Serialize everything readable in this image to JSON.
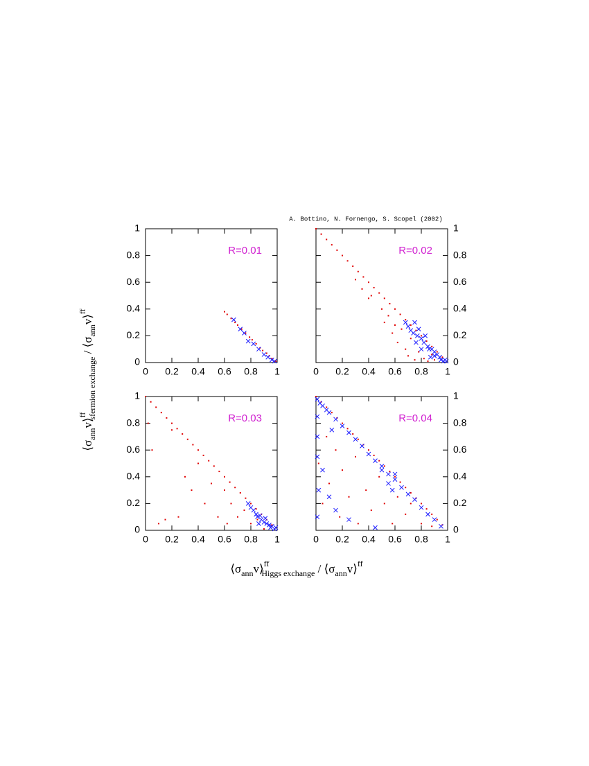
{
  "figure": {
    "credit": "A. Bottino, N. Fornengo, S. Scopel (2002)",
    "x_label": [
      "⟨σ",
      "ann",
      "v⟩",
      "ff",
      "Higgs exchange",
      " / ⟨σ",
      "ann",
      "v⟩",
      "ff"
    ],
    "y_label": [
      "⟨σ",
      "ann",
      "v⟩",
      "ff",
      "sfermion exchange",
      " / ⟨σ",
      "ann",
      "v⟩",
      "ff"
    ]
  },
  "chart_data": [
    {
      "type": "scatter",
      "annotation": "R=0.01",
      "annotation_color": "#d020d0",
      "ytick_side": "left",
      "xlim": [
        0,
        1
      ],
      "ylim": [
        0,
        1
      ],
      "xticks": [
        0,
        0.2,
        0.4,
        0.6,
        0.8,
        1
      ],
      "yticks": [
        0,
        0.2,
        0.4,
        0.6,
        0.8,
        1
      ],
      "series": [
        {
          "color": "#e00000",
          "marker": "dot",
          "x": [
            0.6,
            0.62,
            0.65,
            0.68,
            0.7,
            0.73,
            0.76,
            0.79,
            0.81,
            0.84,
            0.87,
            0.89,
            0.92,
            0.94,
            0.96,
            0.98,
            0.99
          ],
          "values": [
            0.38,
            0.36,
            0.33,
            0.3,
            0.28,
            0.25,
            0.22,
            0.19,
            0.17,
            0.14,
            0.11,
            0.09,
            0.07,
            0.05,
            0.03,
            0.01,
            0.01
          ]
        },
        {
          "color": "#1a1aff",
          "marker": "cross",
          "x": [
            0.67,
            0.72,
            0.75,
            0.78,
            0.82,
            0.86,
            0.9,
            0.93,
            0.96,
            0.98
          ],
          "values": [
            0.32,
            0.25,
            0.22,
            0.16,
            0.14,
            0.1,
            0.06,
            0.04,
            0.02,
            0.01
          ]
        }
      ]
    },
    {
      "type": "scatter",
      "annotation": "R=0.02",
      "annotation_color": "#d020d0",
      "ytick_side": "right",
      "xlim": [
        0,
        1
      ],
      "ylim": [
        0,
        1
      ],
      "xticks": [
        0,
        0.2,
        0.4,
        0.6,
        0.8,
        1
      ],
      "yticks": [
        0,
        0.2,
        0.4,
        0.6,
        0.8,
        1
      ],
      "series": [
        {
          "color": "#e00000",
          "marker": "dot",
          "x": [
            0,
            0.04,
            0.08,
            0.12,
            0.16,
            0.2,
            0.24,
            0.28,
            0.32,
            0.36,
            0.4,
            0.44,
            0.48,
            0.52,
            0.56,
            0.6,
            0.64,
            0.68,
            0.72,
            0.76,
            0.8,
            0.84,
            0.88,
            0.92,
            0.96,
            0.3,
            0.35,
            0.4,
            0.42,
            0.5,
            0.52,
            0.55,
            0.58,
            0.6,
            0.62,
            0.65,
            0.68,
            0.7,
            0.72,
            0.75,
            0.78,
            0.82,
            0.85,
            0.88,
            0.9
          ],
          "values": [
            1,
            0.96,
            0.92,
            0.88,
            0.84,
            0.8,
            0.76,
            0.72,
            0.68,
            0.64,
            0.6,
            0.56,
            0.52,
            0.48,
            0.44,
            0.4,
            0.36,
            0.32,
            0.28,
            0.24,
            0.2,
            0.16,
            0.12,
            0.08,
            0.04,
            0.62,
            0.55,
            0.48,
            0.5,
            0.4,
            0.3,
            0.35,
            0.22,
            0.28,
            0.15,
            0.25,
            0.1,
            0.05,
            0.18,
            0.02,
            0.08,
            0.03,
            0.01,
            0.06,
            0.02
          ]
        },
        {
          "color": "#1a1aff",
          "marker": "cross",
          "x": [
            0.68,
            0.7,
            0.72,
            0.74,
            0.75,
            0.77,
            0.78,
            0.8,
            0.82,
            0.83,
            0.85,
            0.86,
            0.88,
            0.9,
            0.9,
            0.92,
            0.94,
            0.95,
            0.97,
            0.98,
            0.99,
            0.8,
            0.76,
            0.87
          ],
          "values": [
            0.3,
            0.27,
            0.24,
            0.22,
            0.3,
            0.2,
            0.25,
            0.18,
            0.15,
            0.2,
            0.12,
            0.1,
            0.1,
            0.08,
            0.05,
            0.06,
            0.04,
            0.02,
            0.01,
            0.02,
            0.01,
            0.1,
            0.15,
            0.04
          ]
        }
      ]
    },
    {
      "type": "scatter",
      "annotation": "R=0.03",
      "annotation_color": "#d020d0",
      "ytick_side": "left",
      "xlim": [
        0,
        1
      ],
      "ylim": [
        0,
        1
      ],
      "xticks": [
        0,
        0.2,
        0.4,
        0.6,
        0.8,
        1
      ],
      "yticks": [
        0,
        0.2,
        0.4,
        0.6,
        0.8,
        1
      ],
      "series": [
        {
          "color": "#e00000",
          "marker": "dot",
          "x": [
            0,
            0.04,
            0.08,
            0.12,
            0.16,
            0.2,
            0.24,
            0.28,
            0.32,
            0.36,
            0.4,
            0.44,
            0.48,
            0.52,
            0.56,
            0.6,
            0.64,
            0.68,
            0.72,
            0.76,
            0.8,
            0.84,
            0.88,
            0.92,
            0.96,
            0.02,
            0.05,
            0.1,
            0.15,
            0.2,
            0.25,
            0.3,
            0.35,
            0.4,
            0.45,
            0.5,
            0.55,
            0.6,
            0.62,
            0.65,
            0.7,
            0.75,
            0.8,
            0.85,
            0.9
          ],
          "values": [
            1,
            0.96,
            0.92,
            0.88,
            0.84,
            0.8,
            0.76,
            0.72,
            0.68,
            0.64,
            0.6,
            0.56,
            0.52,
            0.48,
            0.44,
            0.4,
            0.36,
            0.32,
            0.28,
            0.24,
            0.2,
            0.16,
            0.12,
            0.08,
            0.04,
            0.8,
            0.6,
            0.05,
            0.08,
            0.75,
            0.1,
            0.4,
            0.3,
            0.5,
            0.2,
            0.35,
            0.1,
            0.3,
            0.05,
            0.2,
            0.1,
            0.15,
            0.05,
            0.08,
            0.01
          ]
        },
        {
          "color": "#1a1aff",
          "marker": "cross",
          "x": [
            0.78,
            0.8,
            0.82,
            0.84,
            0.85,
            0.87,
            0.88,
            0.9,
            0.91,
            0.92,
            0.94,
            0.95,
            0.96,
            0.98,
            0.99,
            0.86
          ],
          "values": [
            0.2,
            0.17,
            0.15,
            0.12,
            0.1,
            0.11,
            0.08,
            0.06,
            0.09,
            0.05,
            0.04,
            0.02,
            0.03,
            0.01,
            0.02,
            0.05
          ]
        }
      ]
    },
    {
      "type": "scatter",
      "annotation": "R=0.04",
      "annotation_color": "#d020d0",
      "ytick_side": "right",
      "xlim": [
        0,
        1
      ],
      "ylim": [
        0,
        1
      ],
      "xticks": [
        0,
        0.2,
        0.4,
        0.6,
        0.8,
        1
      ],
      "yticks": [
        0,
        0.2,
        0.4,
        0.6,
        0.8,
        1
      ],
      "series": [
        {
          "color": "#e00000",
          "marker": "dot",
          "x": [
            0,
            0.04,
            0.08,
            0.12,
            0.16,
            0.2,
            0.24,
            0.28,
            0.32,
            0.36,
            0.4,
            0.44,
            0.48,
            0.52,
            0.56,
            0.6,
            0.64,
            0.68,
            0.72,
            0.76,
            0.8,
            0.84,
            0.88,
            0.92,
            0.96,
            0.02,
            0.05,
            0.08,
            0.1,
            0.15,
            0.18,
            0.2,
            0.25,
            0.3,
            0.32,
            0.38,
            0.42,
            0.48,
            0.52,
            0.58,
            0.62,
            0.68,
            0.72,
            0.8,
            0.88
          ],
          "values": [
            1,
            0.96,
            0.92,
            0.88,
            0.84,
            0.8,
            0.76,
            0.72,
            0.68,
            0.64,
            0.6,
            0.56,
            0.52,
            0.48,
            0.44,
            0.4,
            0.36,
            0.32,
            0.28,
            0.24,
            0.2,
            0.16,
            0.12,
            0.08,
            0.04,
            0.5,
            0.2,
            0.7,
            0.35,
            0.6,
            0.1,
            0.45,
            0.25,
            0.55,
            0.05,
            0.3,
            0.15,
            0.4,
            0.2,
            0.05,
            0.25,
            0.12,
            0.2,
            0.05,
            0.03
          ]
        },
        {
          "color": "#1a1aff",
          "marker": "cross",
          "x": [
            0.01,
            0.03,
            0.05,
            0.08,
            0.1,
            0.15,
            0.2,
            0.25,
            0.3,
            0.35,
            0.4,
            0.45,
            0.5,
            0.55,
            0.6,
            0.65,
            0.7,
            0.75,
            0.8,
            0.85,
            0.9,
            0.95,
            0.01,
            0.01,
            0.01,
            0.02,
            0.01,
            0.05,
            0.1,
            0.15,
            0.25,
            0.45,
            0.5,
            0.55,
            0.58,
            0.6,
            0.12
          ],
          "values": [
            0.98,
            0.95,
            0.93,
            0.9,
            0.88,
            0.83,
            0.78,
            0.73,
            0.68,
            0.63,
            0.57,
            0.52,
            0.48,
            0.42,
            0.38,
            0.32,
            0.27,
            0.23,
            0.17,
            0.12,
            0.08,
            0.03,
            0.85,
            0.7,
            0.55,
            0.3,
            0.1,
            0.45,
            0.25,
            0.15,
            0.08,
            0.02,
            0.45,
            0.35,
            0.3,
            0.42,
            0.75
          ]
        }
      ]
    }
  ]
}
